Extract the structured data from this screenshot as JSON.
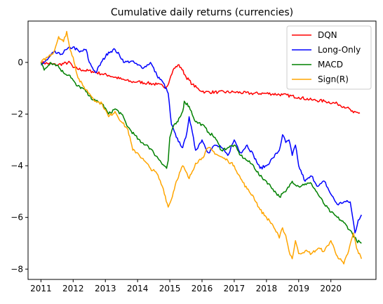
{
  "chart_data": {
    "type": "line",
    "title": "Cumulative daily returns (currencies)",
    "xlabel": "",
    "ylabel": "",
    "xlim": [
      2010.6,
      2021.4
    ],
    "ylim": [
      -8.4,
      1.6
    ],
    "xticks": [
      {
        "value": 2011,
        "label": "2011"
      },
      {
        "value": 2012,
        "label": "2012"
      },
      {
        "value": 2013,
        "label": "2013"
      },
      {
        "value": 2014,
        "label": "2014"
      },
      {
        "value": 2015,
        "label": "2015"
      },
      {
        "value": 2016,
        "label": "2016"
      },
      {
        "value": 2017,
        "label": "2017"
      },
      {
        "value": 2018,
        "label": "2018"
      },
      {
        "value": 2019,
        "label": "2019"
      },
      {
        "value": 2020,
        "label": "2020"
      }
    ],
    "yticks": [
      {
        "value": 0,
        "label": "0"
      },
      {
        "value": -2,
        "label": "−2"
      },
      {
        "value": -4,
        "label": "−4"
      },
      {
        "value": -6,
        "label": "−6"
      },
      {
        "value": -8,
        "label": "−8"
      }
    ],
    "grid": false,
    "legend_position": "top-right",
    "series": [
      {
        "name": "DQN",
        "color": "#ff0000",
        "points": [
          [
            2011.0,
            0.0
          ],
          [
            2011.5,
            -0.1
          ],
          [
            2011.9,
            0.0
          ],
          [
            2012.0,
            -0.2
          ],
          [
            2012.3,
            -0.3
          ],
          [
            2012.6,
            -0.35
          ],
          [
            2012.9,
            -0.45
          ],
          [
            2013.1,
            -0.5
          ],
          [
            2013.5,
            -0.65
          ],
          [
            2013.8,
            -0.75
          ],
          [
            2014.0,
            -0.75
          ],
          [
            2014.3,
            -0.8
          ],
          [
            2014.6,
            -0.85
          ],
          [
            2014.9,
            -0.95
          ],
          [
            2015.0,
            -0.65
          ],
          [
            2015.1,
            -0.3
          ],
          [
            2015.25,
            -0.1
          ],
          [
            2015.35,
            -0.2
          ],
          [
            2015.5,
            -0.55
          ],
          [
            2015.7,
            -0.85
          ],
          [
            2015.9,
            -1.05
          ],
          [
            2016.1,
            -1.15
          ],
          [
            2016.5,
            -1.15
          ],
          [
            2017.0,
            -1.15
          ],
          [
            2017.5,
            -1.2
          ],
          [
            2018.0,
            -1.2
          ],
          [
            2018.5,
            -1.25
          ],
          [
            2019.0,
            -1.35
          ],
          [
            2019.4,
            -1.45
          ],
          [
            2019.8,
            -1.5
          ],
          [
            2020.2,
            -1.6
          ],
          [
            2020.5,
            -1.75
          ],
          [
            2020.7,
            -1.95
          ],
          [
            2020.9,
            -1.95
          ]
        ]
      },
      {
        "name": "Long-Only",
        "color": "#0000ff",
        "points": [
          [
            2011.0,
            -0.1
          ],
          [
            2011.2,
            0.1
          ],
          [
            2011.4,
            0.4
          ],
          [
            2011.6,
            0.3
          ],
          [
            2011.8,
            0.5
          ],
          [
            2012.0,
            0.6
          ],
          [
            2012.2,
            0.4
          ],
          [
            2012.4,
            0.5
          ],
          [
            2012.5,
            0.0
          ],
          [
            2012.7,
            -0.4
          ],
          [
            2012.9,
            0.05
          ],
          [
            2013.1,
            0.4
          ],
          [
            2013.3,
            0.5
          ],
          [
            2013.6,
            0.0
          ],
          [
            2013.8,
            0.05
          ],
          [
            2014.0,
            -0.1
          ],
          [
            2014.2,
            -0.2
          ],
          [
            2014.4,
            0.0
          ],
          [
            2014.6,
            -0.5
          ],
          [
            2014.8,
            -0.8
          ],
          [
            2014.95,
            -1.2
          ],
          [
            2015.05,
            -2.4
          ],
          [
            2015.2,
            -2.9
          ],
          [
            2015.4,
            -3.3
          ],
          [
            2015.5,
            -2.9
          ],
          [
            2015.6,
            -2.1
          ],
          [
            2015.8,
            -3.4
          ],
          [
            2016.0,
            -3.0
          ],
          [
            2016.2,
            -3.5
          ],
          [
            2016.4,
            -3.2
          ],
          [
            2016.6,
            -3.3
          ],
          [
            2016.8,
            -3.6
          ],
          [
            2017.0,
            -3.0
          ],
          [
            2017.2,
            -3.5
          ],
          [
            2017.4,
            -3.2
          ],
          [
            2017.6,
            -3.6
          ],
          [
            2017.8,
            -4.1
          ],
          [
            2018.0,
            -4.0
          ],
          [
            2018.2,
            -3.7
          ],
          [
            2018.4,
            -3.4
          ],
          [
            2018.5,
            -2.8
          ],
          [
            2018.6,
            -3.1
          ],
          [
            2018.7,
            -3.0
          ],
          [
            2018.8,
            -3.6
          ],
          [
            2018.9,
            -3.2
          ],
          [
            2019.0,
            -4.0
          ],
          [
            2019.2,
            -4.6
          ],
          [
            2019.4,
            -4.4
          ],
          [
            2019.6,
            -4.8
          ],
          [
            2019.8,
            -4.6
          ],
          [
            2020.0,
            -5.1
          ],
          [
            2020.2,
            -5.5
          ],
          [
            2020.4,
            -5.4
          ],
          [
            2020.6,
            -5.4
          ],
          [
            2020.75,
            -6.6
          ],
          [
            2020.85,
            -6.1
          ],
          [
            2020.95,
            -5.9
          ]
        ]
      },
      {
        "name": "MACD",
        "color": "#008000",
        "points": [
          [
            2011.0,
            0.0
          ],
          [
            2011.1,
            -0.3
          ],
          [
            2011.3,
            0.0
          ],
          [
            2011.5,
            -0.1
          ],
          [
            2011.7,
            -0.4
          ],
          [
            2011.9,
            -0.5
          ],
          [
            2012.1,
            -0.9
          ],
          [
            2012.3,
            -1.0
          ],
          [
            2012.5,
            -1.3
          ],
          [
            2012.7,
            -1.5
          ],
          [
            2012.9,
            -1.6
          ],
          [
            2013.1,
            -2.0
          ],
          [
            2013.3,
            -1.8
          ],
          [
            2013.5,
            -2.0
          ],
          [
            2013.7,
            -2.5
          ],
          [
            2013.9,
            -2.8
          ],
          [
            2014.1,
            -3.1
          ],
          [
            2014.3,
            -3.2
          ],
          [
            2014.5,
            -3.5
          ],
          [
            2014.7,
            -3.8
          ],
          [
            2014.9,
            -4.1
          ],
          [
            2014.95,
            -3.8
          ],
          [
            2015.0,
            -2.9
          ],
          [
            2015.1,
            -2.5
          ],
          [
            2015.25,
            -2.3
          ],
          [
            2015.4,
            -1.9
          ],
          [
            2015.45,
            -1.5
          ],
          [
            2015.6,
            -1.7
          ],
          [
            2015.8,
            -2.3
          ],
          [
            2016.0,
            -2.4
          ],
          [
            2016.2,
            -2.7
          ],
          [
            2016.4,
            -2.9
          ],
          [
            2016.6,
            -3.4
          ],
          [
            2016.8,
            -3.3
          ],
          [
            2017.0,
            -3.2
          ],
          [
            2017.2,
            -3.6
          ],
          [
            2017.4,
            -3.8
          ],
          [
            2017.6,
            -4.0
          ],
          [
            2017.8,
            -4.4
          ],
          [
            2018.0,
            -4.6
          ],
          [
            2018.2,
            -4.9
          ],
          [
            2018.4,
            -5.2
          ],
          [
            2018.6,
            -5.0
          ],
          [
            2018.8,
            -4.6
          ],
          [
            2019.0,
            -4.8
          ],
          [
            2019.2,
            -4.7
          ],
          [
            2019.4,
            -4.7
          ],
          [
            2019.6,
            -5.1
          ],
          [
            2019.8,
            -5.5
          ],
          [
            2020.0,
            -5.8
          ],
          [
            2020.2,
            -6.0
          ],
          [
            2020.4,
            -6.2
          ],
          [
            2020.6,
            -6.5
          ],
          [
            2020.8,
            -6.9
          ],
          [
            2020.95,
            -7.0
          ]
        ]
      },
      {
        "name": "Sign(R)",
        "color": "#ffa500",
        "points": [
          [
            2011.0,
            0.0
          ],
          [
            2011.2,
            0.2
          ],
          [
            2011.4,
            0.4
          ],
          [
            2011.55,
            1.0
          ],
          [
            2011.7,
            0.8
          ],
          [
            2011.8,
            1.2
          ],
          [
            2011.9,
            0.5
          ],
          [
            2012.0,
            0.2
          ],
          [
            2012.15,
            -0.6
          ],
          [
            2012.3,
            -0.9
          ],
          [
            2012.5,
            -1.2
          ],
          [
            2012.7,
            -1.5
          ],
          [
            2012.9,
            -1.6
          ],
          [
            2013.1,
            -2.1
          ],
          [
            2013.3,
            -1.9
          ],
          [
            2013.5,
            -2.3
          ],
          [
            2013.7,
            -2.6
          ],
          [
            2013.85,
            -3.4
          ],
          [
            2014.0,
            -3.5
          ],
          [
            2014.2,
            -3.8
          ],
          [
            2014.4,
            -4.1
          ],
          [
            2014.6,
            -4.3
          ],
          [
            2014.8,
            -4.9
          ],
          [
            2014.95,
            -5.6
          ],
          [
            2015.05,
            -5.3
          ],
          [
            2015.2,
            -4.6
          ],
          [
            2015.4,
            -4.0
          ],
          [
            2015.6,
            -4.5
          ],
          [
            2015.8,
            -3.9
          ],
          [
            2016.0,
            -3.7
          ],
          [
            2016.2,
            -3.3
          ],
          [
            2016.5,
            -3.6
          ],
          [
            2016.8,
            -3.8
          ],
          [
            2017.0,
            -4.0
          ],
          [
            2017.2,
            -4.5
          ],
          [
            2017.4,
            -4.9
          ],
          [
            2017.6,
            -5.2
          ],
          [
            2017.8,
            -5.7
          ],
          [
            2018.0,
            -6.0
          ],
          [
            2018.2,
            -6.3
          ],
          [
            2018.4,
            -6.8
          ],
          [
            2018.5,
            -6.4
          ],
          [
            2018.6,
            -6.7
          ],
          [
            2018.7,
            -7.3
          ],
          [
            2018.8,
            -7.6
          ],
          [
            2018.9,
            -6.9
          ],
          [
            2019.0,
            -7.4
          ],
          [
            2019.2,
            -7.3
          ],
          [
            2019.4,
            -7.4
          ],
          [
            2019.6,
            -7.2
          ],
          [
            2019.8,
            -7.3
          ],
          [
            2020.0,
            -6.9
          ],
          [
            2020.2,
            -7.5
          ],
          [
            2020.4,
            -7.8
          ],
          [
            2020.55,
            -7.3
          ],
          [
            2020.7,
            -6.6
          ],
          [
            2020.8,
            -7.2
          ],
          [
            2020.95,
            -7.6
          ]
        ]
      }
    ]
  }
}
